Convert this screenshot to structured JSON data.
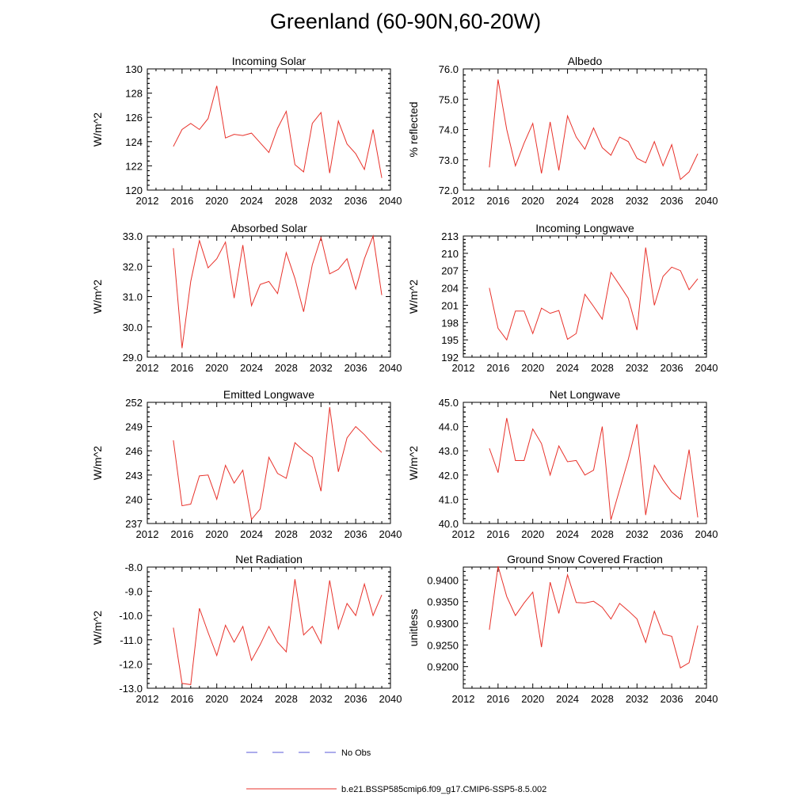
{
  "figure": {
    "title": "Greenland (60-90N,60-20W)",
    "legend": [
      {
        "label": "No Obs",
        "color": "#5a5ad8",
        "style": "dashed"
      },
      {
        "label": "b.e21.BSSP585cmip6.f09_g17.CMIP6-SSP5-8.5.002",
        "color": "#e8322b",
        "style": "solid"
      }
    ]
  },
  "chart_data": [
    {
      "type": "line",
      "title": "Incoming Solar",
      "ylabel": "W/m^2",
      "xlim": [
        2012,
        2040
      ],
      "ylim": [
        120,
        130
      ],
      "xticks": [
        2012,
        2016,
        2020,
        2024,
        2028,
        2032,
        2036,
        2040
      ],
      "yticks": [
        120,
        122,
        124,
        126,
        128,
        130
      ],
      "yticklabels": [
        "120",
        "122",
        "124",
        "126",
        "128",
        "130"
      ],
      "x": [
        2015,
        2016,
        2017,
        2018,
        2019,
        2020,
        2021,
        2022,
        2023,
        2024,
        2025,
        2026,
        2027,
        2028,
        2029,
        2030,
        2031,
        2032,
        2033,
        2034,
        2035,
        2036,
        2037,
        2038,
        2039
      ],
      "series": [
        {
          "values": [
            123.6,
            125.0,
            125.5,
            125.0,
            125.9,
            128.6,
            124.3,
            124.6,
            124.5,
            124.7,
            123.9,
            123.1,
            125.1,
            126.5,
            122.1,
            121.5,
            125.5,
            126.4,
            121.4,
            125.7,
            123.8,
            123.0,
            121.7,
            125.0,
            121.0
          ]
        }
      ]
    },
    {
      "type": "line",
      "title": "Albedo",
      "ylabel": "% reflected",
      "xlim": [
        2012,
        2040
      ],
      "ylim": [
        72.0,
        76.0
      ],
      "xticks": [
        2012,
        2016,
        2020,
        2024,
        2028,
        2032,
        2036,
        2040
      ],
      "yticks": [
        72.0,
        73.0,
        74.0,
        75.0,
        76.0
      ],
      "yticklabels": [
        "72.0",
        "73.0",
        "74.0",
        "75.0",
        "76.0"
      ],
      "x": [
        2015,
        2016,
        2017,
        2018,
        2019,
        2020,
        2021,
        2022,
        2023,
        2024,
        2025,
        2026,
        2027,
        2028,
        2029,
        2030,
        2031,
        2032,
        2033,
        2034,
        2035,
        2036,
        2037,
        2038,
        2039
      ],
      "series": [
        {
          "values": [
            72.75,
            75.65,
            74.0,
            72.8,
            73.55,
            74.2,
            72.55,
            74.25,
            72.65,
            74.45,
            73.75,
            73.35,
            74.05,
            73.4,
            73.15,
            73.75,
            73.6,
            73.05,
            72.9,
            73.6,
            72.8,
            73.5,
            72.35,
            72.6,
            73.2
          ]
        }
      ]
    },
    {
      "type": "line",
      "title": "Absorbed Solar",
      "ylabel": "W/m^2",
      "xlim": [
        2012,
        2040
      ],
      "ylim": [
        29.0,
        33.0
      ],
      "xticks": [
        2012,
        2016,
        2020,
        2024,
        2028,
        2032,
        2036,
        2040
      ],
      "yticks": [
        29.0,
        30.0,
        31.0,
        32.0,
        33.0
      ],
      "yticklabels": [
        "29.0",
        "30.0",
        "31.0",
        "32.0",
        "33.0"
      ],
      "x": [
        2015,
        2016,
        2017,
        2018,
        2019,
        2020,
        2021,
        2022,
        2023,
        2024,
        2025,
        2026,
        2027,
        2028,
        2029,
        2030,
        2031,
        2032,
        2033,
        2034,
        2035,
        2036,
        2037,
        2038,
        2039
      ],
      "series": [
        {
          "values": [
            32.6,
            29.3,
            31.5,
            32.85,
            31.95,
            32.25,
            32.8,
            30.95,
            32.7,
            30.7,
            31.4,
            31.5,
            31.1,
            32.45,
            31.6,
            30.5,
            32.05,
            32.95,
            31.75,
            31.9,
            32.25,
            31.25,
            32.25,
            33.0,
            31.05
          ]
        }
      ]
    },
    {
      "type": "line",
      "title": "Incoming Longwave",
      "ylabel": "W/m^2",
      "xlim": [
        2012,
        2040
      ],
      "ylim": [
        192,
        213
      ],
      "xticks": [
        2012,
        2016,
        2020,
        2024,
        2028,
        2032,
        2036,
        2040
      ],
      "yticks": [
        192,
        195,
        198,
        201,
        204,
        207,
        210,
        213
      ],
      "yticklabels": [
        "192",
        "195",
        "198",
        "201",
        "204",
        "207",
        "210",
        "213"
      ],
      "x": [
        2015,
        2016,
        2017,
        2018,
        2019,
        2020,
        2021,
        2022,
        2023,
        2024,
        2025,
        2026,
        2027,
        2028,
        2029,
        2030,
        2031,
        2032,
        2033,
        2034,
        2035,
        2036,
        2037,
        2038,
        2039
      ],
      "series": [
        {
          "values": [
            204.0,
            197.0,
            195.0,
            200.0,
            200.0,
            196.1,
            200.5,
            199.6,
            200.1,
            195.1,
            196.1,
            202.9,
            200.8,
            198.6,
            206.7,
            204.5,
            202.2,
            196.7,
            211.0,
            201.0,
            206.0,
            207.6,
            207.0,
            203.7,
            205.6
          ]
        }
      ]
    },
    {
      "type": "line",
      "title": "Emitted Longwave",
      "ylabel": "W/m^2",
      "xlim": [
        2012,
        2040
      ],
      "ylim": [
        237,
        252
      ],
      "xticks": [
        2012,
        2016,
        2020,
        2024,
        2028,
        2032,
        2036,
        2040
      ],
      "yticks": [
        237,
        240,
        243,
        246,
        249,
        252
      ],
      "yticklabels": [
        "237",
        "240",
        "243",
        "246",
        "249",
        "252"
      ],
      "x": [
        2015,
        2016,
        2017,
        2018,
        2019,
        2020,
        2021,
        2022,
        2023,
        2024,
        2025,
        2026,
        2027,
        2028,
        2029,
        2030,
        2031,
        2032,
        2033,
        2034,
        2035,
        2036,
        2037,
        2038,
        2039
      ],
      "series": [
        {
          "values": [
            247.3,
            239.2,
            239.4,
            242.9,
            243.0,
            240.0,
            244.2,
            242.0,
            243.6,
            237.5,
            238.8,
            245.2,
            243.2,
            242.6,
            247.0,
            246.0,
            245.2,
            241.0,
            251.4,
            243.4,
            247.6,
            249.0,
            248.0,
            246.8,
            245.8
          ]
        }
      ]
    },
    {
      "type": "line",
      "title": "Net Longwave",
      "ylabel": "W/m^2",
      "xlim": [
        2012,
        2040
      ],
      "ylim": [
        40.0,
        45.0
      ],
      "xticks": [
        2012,
        2016,
        2020,
        2024,
        2028,
        2032,
        2036,
        2040
      ],
      "yticks": [
        40.0,
        41.0,
        42.0,
        43.0,
        44.0,
        45.0
      ],
      "yticklabels": [
        "40.0",
        "41.0",
        "42.0",
        "43.0",
        "44.0",
        "45.0"
      ],
      "x": [
        2015,
        2016,
        2017,
        2018,
        2019,
        2020,
        2021,
        2022,
        2023,
        2024,
        2025,
        2026,
        2027,
        2028,
        2029,
        2030,
        2031,
        2032,
        2033,
        2034,
        2035,
        2036,
        2037,
        2038,
        2039
      ],
      "series": [
        {
          "values": [
            43.1,
            42.1,
            44.35,
            42.6,
            42.6,
            43.9,
            43.3,
            42.0,
            43.2,
            42.55,
            42.6,
            42.0,
            42.2,
            44.0,
            40.15,
            41.4,
            42.65,
            44.1,
            40.35,
            42.4,
            41.8,
            41.3,
            41.0,
            43.05,
            40.25
          ]
        }
      ]
    },
    {
      "type": "line",
      "title": "Net Radiation",
      "ylabel": "W/m^2",
      "xlim": [
        2012,
        2040
      ],
      "ylim": [
        -13.0,
        -8.0
      ],
      "xticks": [
        2012,
        2016,
        2020,
        2024,
        2028,
        2032,
        2036,
        2040
      ],
      "yticks": [
        -13.0,
        -12.0,
        -11.0,
        -10.0,
        -9.0,
        -8.0
      ],
      "yticklabels": [
        "-13.0",
        "-12.0",
        "-11.0",
        "-10.0",
        "-9.0",
        "-8.0"
      ],
      "x": [
        2015,
        2016,
        2017,
        2018,
        2019,
        2020,
        2021,
        2022,
        2023,
        2024,
        2025,
        2026,
        2027,
        2028,
        2029,
        2030,
        2031,
        2032,
        2033,
        2034,
        2035,
        2036,
        2037,
        2038,
        2039
      ],
      "series": [
        {
          "values": [
            -10.5,
            -12.8,
            -12.85,
            -9.7,
            -10.7,
            -11.65,
            -10.4,
            -11.1,
            -10.45,
            -11.85,
            -11.2,
            -10.45,
            -11.1,
            -11.5,
            -8.5,
            -10.8,
            -10.45,
            -11.15,
            -8.55,
            -10.55,
            -9.5,
            -10.0,
            -8.7,
            -10.0,
            -9.15
          ]
        }
      ]
    },
    {
      "type": "line",
      "title": "Ground Snow Covered Fraction",
      "ylabel": "unitless",
      "xlim": [
        2012,
        2040
      ],
      "ylim": [
        0.915,
        0.943
      ],
      "xticks": [
        2012,
        2016,
        2020,
        2024,
        2028,
        2032,
        2036,
        2040
      ],
      "yticks": [
        0.92,
        0.925,
        0.93,
        0.935,
        0.94
      ],
      "yticklabels": [
        "0.9200",
        "0.9250",
        "0.9300",
        "0.9350",
        "0.9400"
      ],
      "x": [
        2015,
        2016,
        2017,
        2018,
        2019,
        2020,
        2021,
        2022,
        2023,
        2024,
        2025,
        2026,
        2027,
        2028,
        2029,
        2030,
        2031,
        2032,
        2033,
        2034,
        2035,
        2036,
        2037,
        2038,
        2039
      ],
      "series": [
        {
          "values": [
            0.9285,
            0.9432,
            0.9362,
            0.9318,
            0.9347,
            0.9372,
            0.9245,
            0.9395,
            0.9323,
            0.9412,
            0.9348,
            0.9347,
            0.9351,
            0.9337,
            0.931,
            0.9346,
            0.9329,
            0.931,
            0.9256,
            0.9328,
            0.9275,
            0.927,
            0.9197,
            0.9209,
            0.9295
          ]
        }
      ]
    }
  ]
}
